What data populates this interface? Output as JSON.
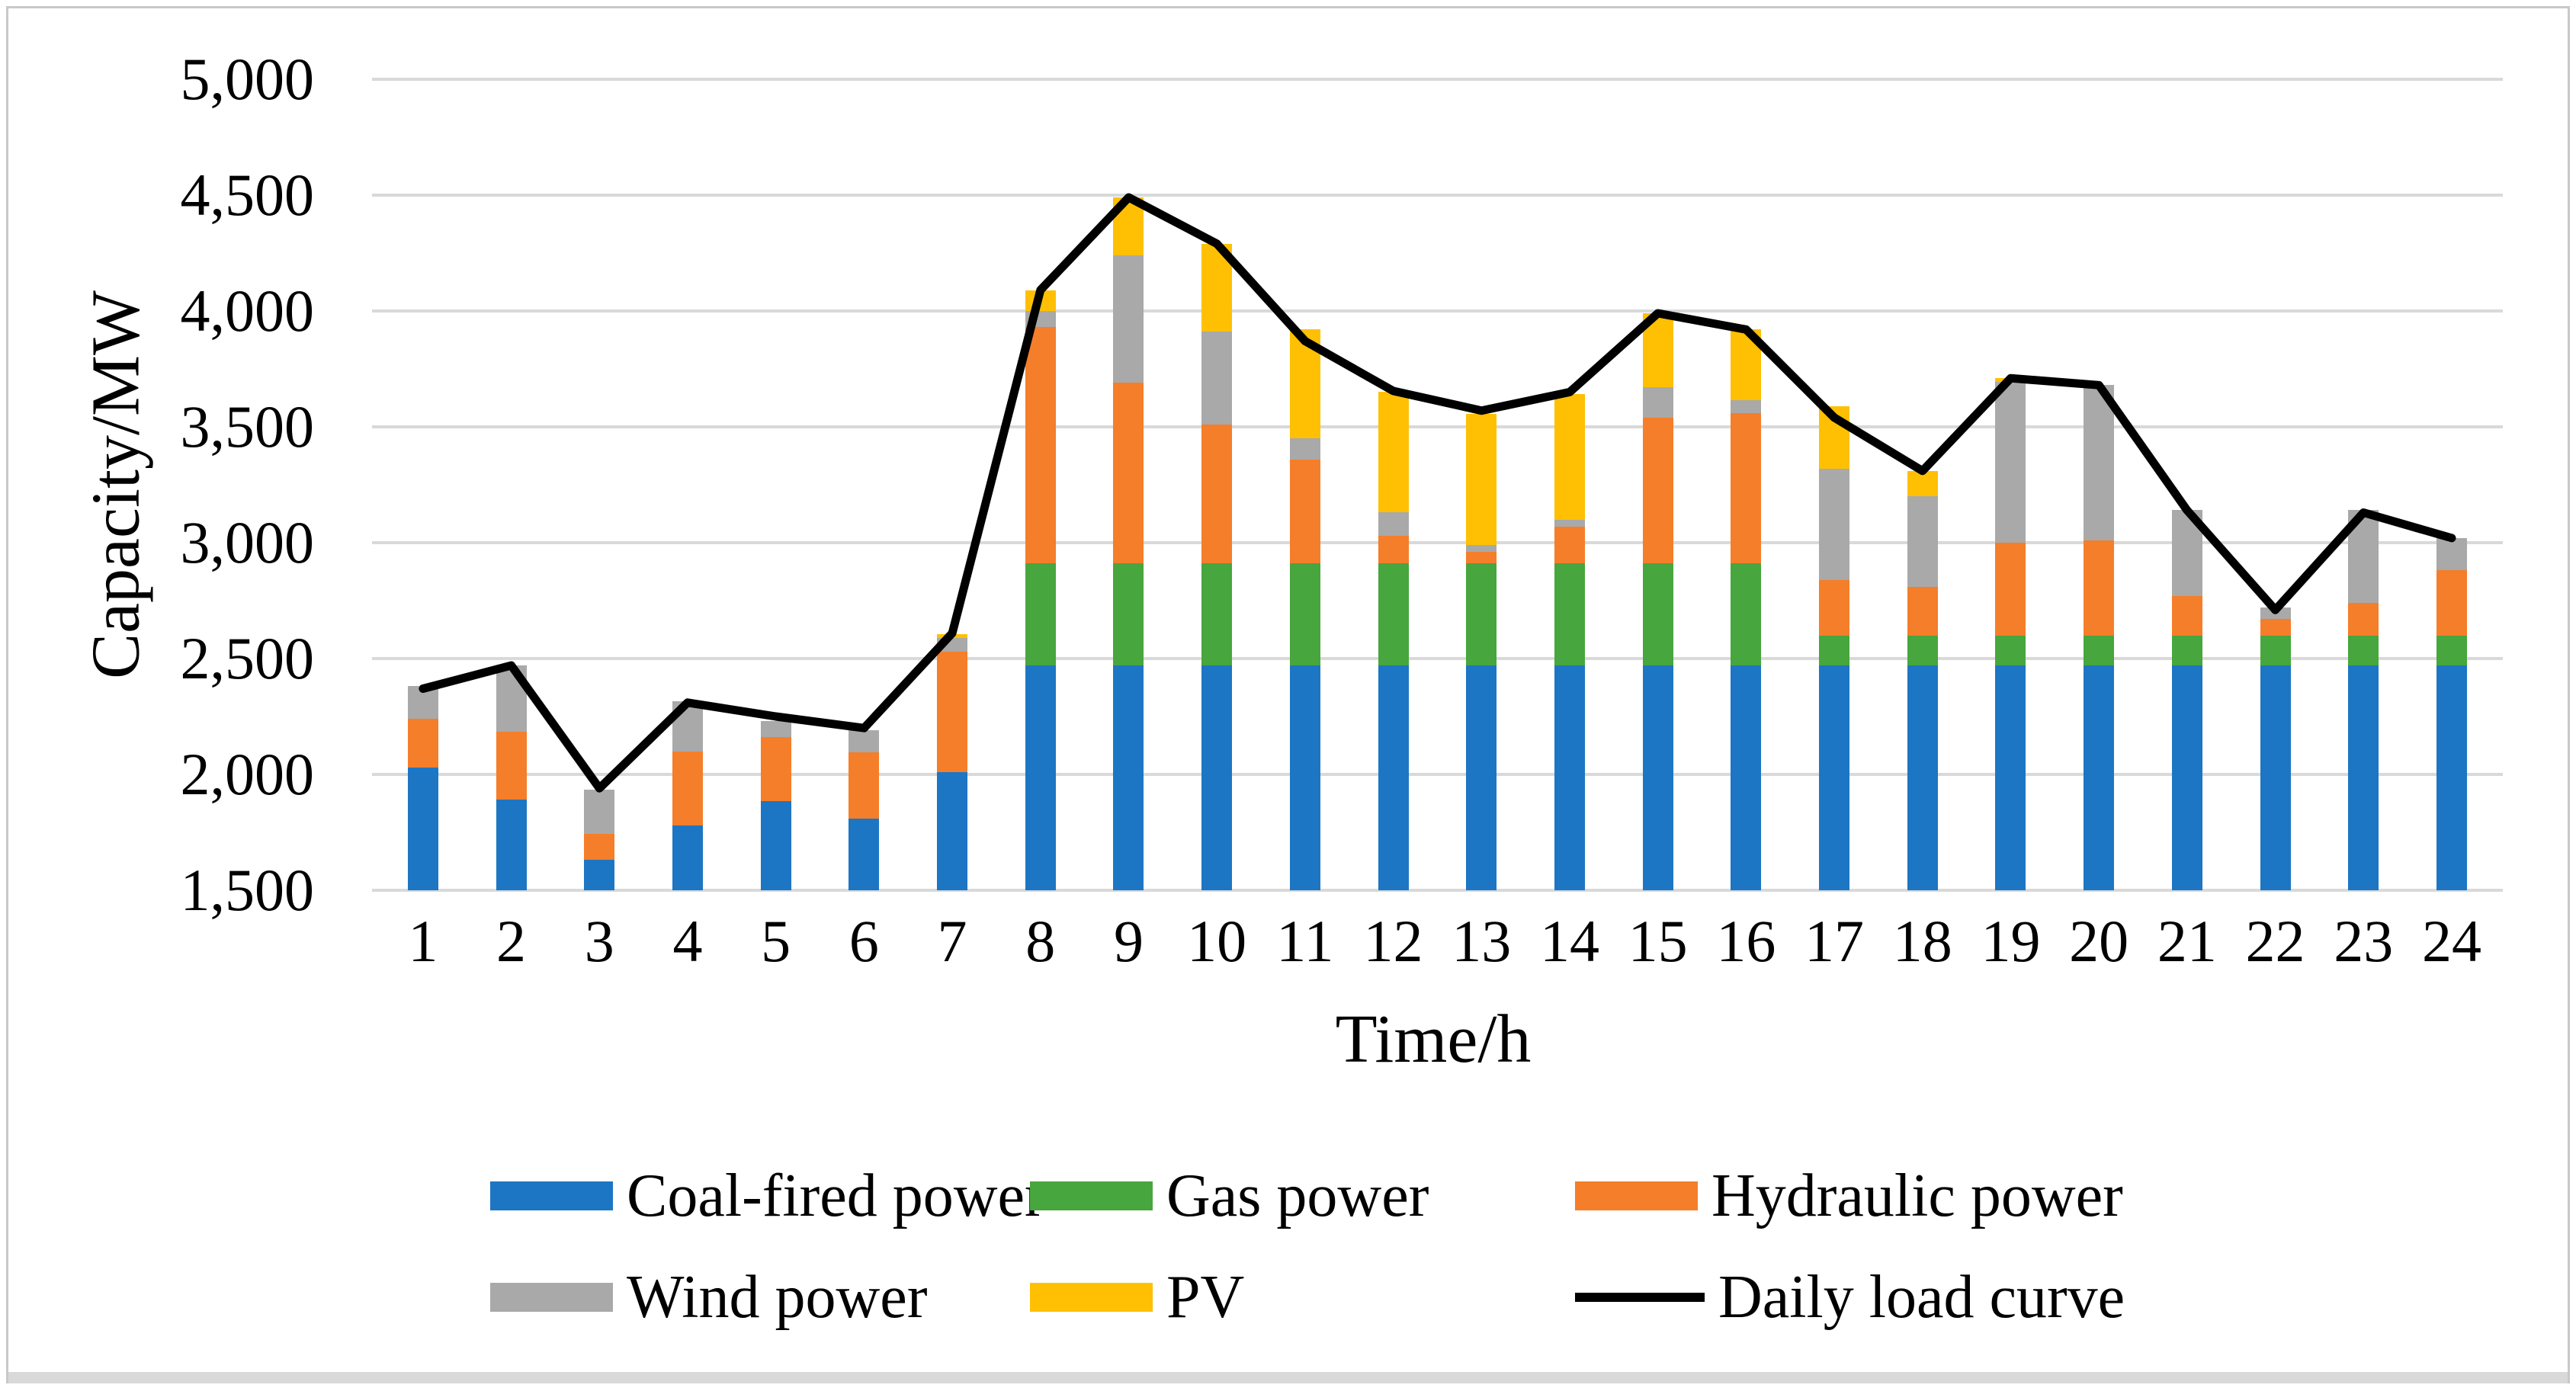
{
  "figure": {
    "border_color": "#c9c9c9",
    "bottom_band_color": "#d9d9d9",
    "background": "#ffffff"
  },
  "chart_data": {
    "type": "bar",
    "subtype": "stacked-bar-with-line-overlay",
    "title": "",
    "xlabel": "Time/h",
    "ylabel": "Capacity/MW",
    "ylim": [
      1500,
      5000
    ],
    "ytick_step": 500,
    "ytick_labels": [
      "1,500",
      "2,000",
      "2,500",
      "3,000",
      "3,500",
      "4,000",
      "4,500",
      "5,000"
    ],
    "grid": "horizontal",
    "gridline_color": "#d9d9d9",
    "legend_position": "bottom",
    "categories": [
      1,
      2,
      3,
      4,
      5,
      6,
      7,
      8,
      9,
      10,
      11,
      12,
      13,
      14,
      15,
      16,
      17,
      18,
      19,
      20,
      21,
      22,
      23,
      24
    ],
    "series": [
      {
        "name": "Coal-fired power",
        "color": "#1d76c3",
        "values": [
          2030,
          1890,
          1630,
          1780,
          1885,
          1810,
          2010,
          2470,
          2470,
          2470,
          2470,
          2470,
          2470,
          2470,
          2470,
          2470,
          2470,
          2470,
          2470,
          2470,
          2470,
          2470,
          2470,
          2470
        ]
      },
      {
        "name": "Gas power",
        "color": "#47a63d",
        "values": [
          0,
          0,
          0,
          0,
          0,
          0,
          0,
          440,
          440,
          440,
          440,
          440,
          440,
          440,
          440,
          440,
          130,
          130,
          130,
          130,
          130,
          130,
          130,
          130
        ]
      },
      {
        "name": "Hydraulic power",
        "color": "#f57e2a",
        "values": [
          210,
          295,
          115,
          320,
          275,
          285,
          520,
          1020,
          780,
          600,
          450,
          120,
          50,
          160,
          630,
          650,
          240,
          210,
          400,
          410,
          170,
          70,
          140,
          280
        ]
      },
      {
        "name": "Wind power",
        "color": "#a9a9a9",
        "values": [
          140,
          285,
          190,
          215,
          70,
          95,
          60,
          70,
          550,
          400,
          90,
          100,
          30,
          30,
          130,
          55,
          480,
          390,
          695,
          670,
          370,
          50,
          400,
          140
        ]
      },
      {
        "name": "PV",
        "color": "#ffc003",
        "values": [
          0,
          0,
          0,
          0,
          0,
          0,
          15,
          90,
          250,
          380,
          470,
          520,
          565,
          540,
          320,
          305,
          270,
          110,
          15,
          0,
          0,
          0,
          0,
          0
        ]
      }
    ],
    "line": {
      "name": "Daily load curve",
      "color": "#000000",
      "values": [
        2370,
        2470,
        1940,
        2310,
        2250,
        2200,
        2610,
        4090,
        4490,
        4290,
        3870,
        3655,
        3570,
        3650,
        3990,
        3920,
        3540,
        3310,
        3710,
        3680,
        3140,
        2710,
        3130,
        3020
      ]
    }
  },
  "legend": {
    "entries": [
      {
        "label": "Coal-fired power",
        "marker": "rect",
        "color": "#1d76c3"
      },
      {
        "label": "Gas power",
        "marker": "rect",
        "color": "#47a63d"
      },
      {
        "label": "Hydraulic power",
        "marker": "rect",
        "color": "#f57e2a"
      },
      {
        "label": "Wind power",
        "marker": "rect",
        "color": "#a9a9a9"
      },
      {
        "label": "PV",
        "marker": "rect",
        "color": "#ffc003"
      },
      {
        "label": "Daily load curve",
        "marker": "line",
        "color": "#000000"
      }
    ]
  }
}
